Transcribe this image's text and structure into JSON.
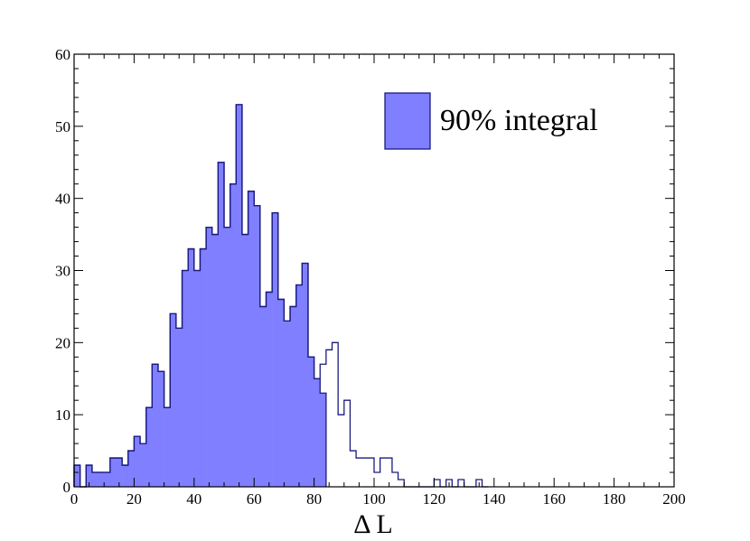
{
  "chart_data": {
    "type": "bar",
    "xlabel": "Δ L",
    "ylabel": "",
    "xlim": [
      0,
      200
    ],
    "ylim": [
      0,
      60
    ],
    "x_ticks": [
      "0",
      "20",
      "40",
      "60",
      "80",
      "100",
      "120",
      "140",
      "160",
      "180",
      "200"
    ],
    "y_ticks": [
      "0",
      "10",
      "20",
      "30",
      "40",
      "50",
      "60"
    ],
    "grid": false,
    "legend_position": "top-right",
    "bin_width": 2,
    "x": [
      1,
      3,
      5,
      7,
      9,
      11,
      13,
      15,
      17,
      19,
      21,
      23,
      25,
      27,
      29,
      31,
      33,
      35,
      37,
      39,
      41,
      43,
      45,
      47,
      49,
      51,
      53,
      55,
      57,
      59,
      61,
      63,
      65,
      67,
      69,
      71,
      73,
      75,
      77,
      79,
      81,
      83,
      85,
      87,
      89,
      91,
      93,
      95,
      97,
      99,
      101,
      103,
      105,
      107,
      109,
      111,
      113,
      115,
      117,
      119,
      121,
      123,
      125,
      127,
      129,
      131,
      133,
      135,
      137
    ],
    "series": [
      {
        "name": "90% integral",
        "values": [
          3,
          0,
          3,
          2,
          2,
          2,
          4,
          4,
          3,
          5,
          7,
          6,
          11,
          17,
          16,
          11,
          24,
          22,
          30,
          33,
          30,
          33,
          36,
          35,
          45,
          36,
          42,
          53,
          35,
          41,
          39,
          25,
          27,
          38,
          26,
          23,
          25,
          28,
          31,
          18,
          15,
          13,
          0,
          0,
          0,
          0,
          0,
          0,
          0,
          0,
          0,
          0,
          0,
          0,
          0,
          0,
          0,
          0,
          0,
          0,
          0,
          0,
          0,
          0,
          0,
          0,
          0,
          0,
          0
        ],
        "style": "filled",
        "color": "#7f7fff",
        "edge_color": "#1a1a80"
      },
      {
        "values": [
          3,
          0,
          3,
          2,
          2,
          2,
          4,
          4,
          3,
          5,
          7,
          6,
          11,
          17,
          16,
          11,
          24,
          22,
          30,
          33,
          30,
          33,
          36,
          35,
          45,
          36,
          42,
          53,
          35,
          41,
          39,
          25,
          27,
          38,
          26,
          23,
          25,
          28,
          31,
          18,
          15,
          17,
          19,
          20,
          10,
          12,
          5,
          4,
          4,
          4,
          2,
          4,
          4,
          2,
          1,
          0,
          0,
          0,
          0,
          0,
          1,
          0,
          1,
          0,
          1,
          0,
          0,
          1,
          0
        ],
        "style": "outline",
        "color": "#1a1a80"
      }
    ]
  }
}
